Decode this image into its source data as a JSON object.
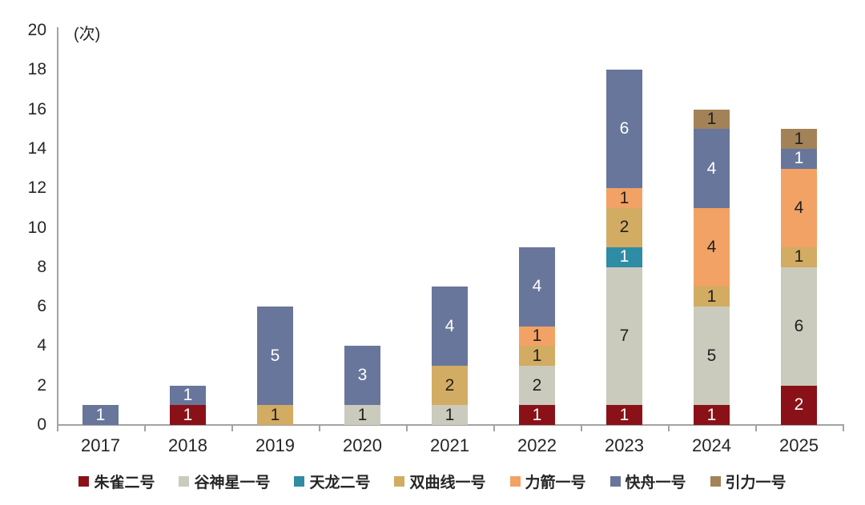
{
  "chart_data": {
    "type": "bar",
    "stacked": true,
    "title": "",
    "unit_label": "(次)",
    "categories": [
      "2017",
      "2018",
      "2019",
      "2020",
      "2021",
      "2022",
      "2023",
      "2024",
      "2025"
    ],
    "series": [
      {
        "name": "朱雀二号",
        "color": "#8A1118",
        "text_color": "#FFFFFF",
        "values": [
          0,
          1,
          0,
          0,
          0,
          1,
          1,
          1,
          2
        ]
      },
      {
        "name": "谷神星一号",
        "color": "#CACBBC",
        "text_color": "#1F1F1F",
        "values": [
          0,
          0,
          0,
          1,
          1,
          2,
          7,
          5,
          6
        ]
      },
      {
        "name": "天龙二号",
        "color": "#2E8CA4",
        "text_color": "#FFFFFF",
        "values": [
          0,
          0,
          0,
          0,
          0,
          0,
          1,
          0,
          0
        ]
      },
      {
        "name": "双曲线一号",
        "color": "#D2AC62",
        "text_color": "#1F1F1F",
        "values": [
          0,
          0,
          1,
          0,
          2,
          1,
          2,
          1,
          1
        ]
      },
      {
        "name": "力箭一号",
        "color": "#F2A264",
        "text_color": "#1F1F1F",
        "values": [
          0,
          0,
          0,
          0,
          0,
          1,
          1,
          4,
          4
        ]
      },
      {
        "name": "快舟一号",
        "color": "#68769B",
        "text_color": "#FFFFFF",
        "values": [
          1,
          1,
          5,
          3,
          4,
          4,
          6,
          4,
          1
        ]
      },
      {
        "name": "引力一号",
        "color": "#A38258",
        "text_color": "#1F1F1F",
        "values": [
          0,
          0,
          0,
          0,
          0,
          0,
          0,
          1,
          1
        ]
      }
    ],
    "totals": [
      1,
      2,
      6,
      4,
      7,
      9,
      18,
      16,
      15
    ],
    "xlabel": "",
    "ylabel": "",
    "ylim": [
      0,
      20
    ],
    "ytick_step": 2,
    "grid": false,
    "legend_position": "bottom",
    "axis_color": "#a3a3a3",
    "tick_label_color": "#262626",
    "background_color": "#ffffff"
  }
}
